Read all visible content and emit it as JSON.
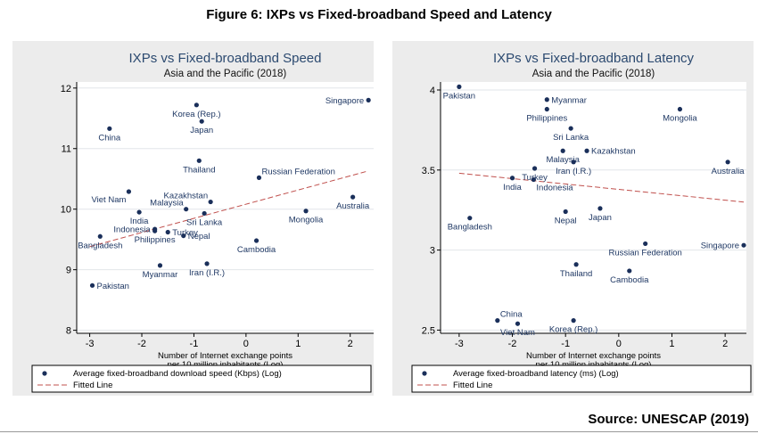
{
  "figure_title": "Figure 6: IXPs vs Fixed-broadband Speed and Latency",
  "source": "Source: UNESCAP (2019)",
  "chart_data": [
    {
      "type": "scatter",
      "title": "IXPs vs Fixed-broadband Speed",
      "subtitle": "Asia and the Pacific  (2018)",
      "xlabel": [
        "Number of Internet exchange points",
        "per 10 million inhabitants (Log)"
      ],
      "ylabel": "",
      "xlim": [
        -3.25,
        2.45
      ],
      "ylim": [
        7.95,
        12.1
      ],
      "xticks": [
        -3,
        -2,
        -1,
        0,
        1,
        2
      ],
      "yticks": [
        8,
        9,
        10,
        11,
        12
      ],
      "grid": true,
      "legend_position": "bottom",
      "legend": [
        "Average fixed-broadband download speed (Kbps) (Log)",
        "Fitted Line"
      ],
      "fitted_line": {
        "x": [
          -3.0,
          2.3
        ],
        "y": [
          9.38,
          10.62
        ]
      },
      "points": [
        {
          "label": "Singapore",
          "x": 2.35,
          "y": 11.8,
          "pos": "left"
        },
        {
          "label": "Korea (Rep.)",
          "x": -0.95,
          "y": 11.72,
          "pos": "below"
        },
        {
          "label": "Japan",
          "x": -0.85,
          "y": 11.45,
          "pos": "below"
        },
        {
          "label": "China",
          "x": -2.62,
          "y": 11.33,
          "pos": "below"
        },
        {
          "label": "Thailand",
          "x": -0.9,
          "y": 10.8,
          "pos": "below"
        },
        {
          "label": "Russian Federation",
          "x": 0.25,
          "y": 10.52,
          "pos": "aboveright"
        },
        {
          "label": "Viet Nam",
          "x": -2.25,
          "y": 10.29,
          "pos": "belowleft"
        },
        {
          "label": "Kazakhstan",
          "x": -0.68,
          "y": 10.12,
          "pos": "aboveleft"
        },
        {
          "label": "Malaysia",
          "x": -1.15,
          "y": 10.0,
          "pos": "aboveleft"
        },
        {
          "label": "Australia",
          "x": 2.05,
          "y": 10.2,
          "pos": "below"
        },
        {
          "label": "India",
          "x": -2.05,
          "y": 9.95,
          "pos": "below"
        },
        {
          "label": "Sri Lanka",
          "x": -0.8,
          "y": 9.93,
          "pos": "below"
        },
        {
          "label": "Mongolia",
          "x": 1.15,
          "y": 9.97,
          "pos": "below"
        },
        {
          "label": "Indonesia",
          "x": -1.75,
          "y": 9.67,
          "pos": "left"
        },
        {
          "label": "Turkey",
          "x": -1.5,
          "y": 9.62,
          "pos": "right"
        },
        {
          "label": "Philippines",
          "x": -1.75,
          "y": 9.64,
          "pos": "below"
        },
        {
          "label": "Nepal",
          "x": -1.2,
          "y": 9.56,
          "pos": "right"
        },
        {
          "label": "Bangladesh",
          "x": -2.8,
          "y": 9.55,
          "pos": "below"
        },
        {
          "label": "Cambodia",
          "x": 0.2,
          "y": 9.48,
          "pos": "below"
        },
        {
          "label": "Myanmar",
          "x": -1.65,
          "y": 9.07,
          "pos": "below"
        },
        {
          "label": "Iran (I.R.)",
          "x": -0.75,
          "y": 9.1,
          "pos": "below"
        },
        {
          "label": "Pakistan",
          "x": -2.95,
          "y": 8.74,
          "pos": "right"
        }
      ]
    },
    {
      "type": "scatter",
      "title": "IXPs vs Fixed-broadband Latency",
      "subtitle": "Asia and the Pacific  (2018)",
      "xlabel": [
        "Number of Internet exchange points",
        "per 10 million inhabitants (Log)"
      ],
      "ylabel": "",
      "xlim": [
        -3.35,
        2.4
      ],
      "ylim": [
        2.48,
        4.05
      ],
      "xticks": [
        -3,
        -2,
        -1,
        0,
        1,
        2
      ],
      "yticks": [
        2.5,
        3,
        3.5,
        4
      ],
      "grid": true,
      "legend_position": "bottom",
      "legend": [
        "Average fixed-broadband latency (ms) (Log)",
        "Fitted Line"
      ],
      "fitted_line": {
        "x": [
          -3.0,
          2.35
        ],
        "y": [
          3.48,
          3.3
        ]
      },
      "points": [
        {
          "label": "Pakistan",
          "x": -3.0,
          "y": 4.02,
          "pos": "below"
        },
        {
          "label": "Myanmar",
          "x": -1.35,
          "y": 3.94,
          "pos": "right"
        },
        {
          "label": "Philippines",
          "x": -1.35,
          "y": 3.88,
          "pos": "below"
        },
        {
          "label": "Mongolia",
          "x": 1.15,
          "y": 3.88,
          "pos": "below"
        },
        {
          "label": "Sri Lanka",
          "x": -0.9,
          "y": 3.76,
          "pos": "below"
        },
        {
          "label": "Kazakhstan",
          "x": -0.6,
          "y": 3.62,
          "pos": "right"
        },
        {
          "label": "Malaysia",
          "x": -1.05,
          "y": 3.62,
          "pos": "below"
        },
        {
          "label": "Iran (I.R.)",
          "x": -0.85,
          "y": 3.55,
          "pos": "below"
        },
        {
          "label": "Australia",
          "x": 2.05,
          "y": 3.55,
          "pos": "below"
        },
        {
          "label": "Turkey",
          "x": -1.58,
          "y": 3.51,
          "pos": "below"
        },
        {
          "label": "India",
          "x": -2.0,
          "y": 3.45,
          "pos": "below"
        },
        {
          "label": "Indonesia",
          "x": -1.6,
          "y": 3.44,
          "pos": "belowright"
        },
        {
          "label": "Nepal",
          "x": -1.0,
          "y": 3.24,
          "pos": "below"
        },
        {
          "label": "Japan",
          "x": -0.35,
          "y": 3.26,
          "pos": "below"
        },
        {
          "label": "Bangladesh",
          "x": -2.8,
          "y": 3.2,
          "pos": "below"
        },
        {
          "label": "Russian Federation",
          "x": 0.5,
          "y": 3.04,
          "pos": "below"
        },
        {
          "label": "Singapore",
          "x": 2.35,
          "y": 3.03,
          "pos": "left"
        },
        {
          "label": "Thailand",
          "x": -0.8,
          "y": 2.91,
          "pos": "below"
        },
        {
          "label": "Cambodia",
          "x": 0.2,
          "y": 2.87,
          "pos": "below"
        },
        {
          "label": "China",
          "x": -2.28,
          "y": 2.56,
          "pos": "aboveright"
        },
        {
          "label": "Viet Nam",
          "x": -1.9,
          "y": 2.54,
          "pos": "below"
        },
        {
          "label": "Korea (Rep.)",
          "x": -0.85,
          "y": 2.56,
          "pos": "below"
        }
      ]
    }
  ],
  "colors": {
    "plot_bg": "#ffffff",
    "panel_bg": "#ececec",
    "grid": "#e2e6ea",
    "marker": "#1a2f5a",
    "label": "#1f3864",
    "title": "#2c4a70",
    "fit_line": "#c0504d"
  }
}
